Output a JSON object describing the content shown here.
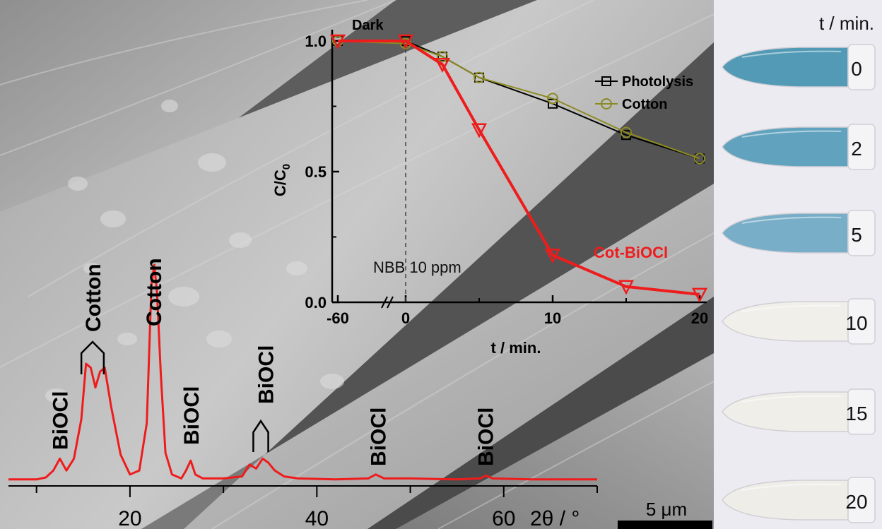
{
  "sem": {
    "scale_bar_label": "5 μm",
    "xrd": {
      "x_tick_labels": [
        {
          "value": 20,
          "label": "20"
        },
        {
          "value": 40,
          "label": "40"
        },
        {
          "value": 60,
          "label": "60"
        }
      ],
      "x_axis_label": "2θ / °",
      "peak_labels": [
        {
          "text": "BiOCl",
          "x": 12.5
        },
        {
          "text": "Cotton",
          "x": 16.0
        },
        {
          "text": "Cotton",
          "x": 22.5
        },
        {
          "text": "BiOCl",
          "x": 26.5
        },
        {
          "text": "BiOCl",
          "x": 34.5
        },
        {
          "text": "BiOCl",
          "x": 46.5
        },
        {
          "text": "BiOCl",
          "x": 58.0
        }
      ],
      "line_color": "#ee1c1c"
    }
  },
  "inset": {
    "x_tick_labels": [
      {
        "value": -60,
        "label": "-60"
      },
      {
        "value": 0,
        "label": "0"
      },
      {
        "value": 10,
        "label": "10"
      },
      {
        "value": 20,
        "label": "20"
      }
    ],
    "y_tick_labels": [
      {
        "value": 0.0,
        "label": "0.0"
      },
      {
        "value": 0.5,
        "label": "0.5"
      },
      {
        "value": 1.0,
        "label": "1.0"
      }
    ],
    "x_axis_label": "t / min.",
    "y_axis_label": "C/C",
    "y_axis_label_sub": "0",
    "dark_label": "Dark",
    "annotation": "NBB 10 ppm",
    "cot_label": "Cot-BiOCl",
    "legend": [
      "Photolysis",
      "Cotton"
    ]
  },
  "vials": {
    "header": "t / min.",
    "rows": [
      {
        "label": "0",
        "color": "#4a96b2"
      },
      {
        "label": "2",
        "color": "#5aa0bd"
      },
      {
        "label": "5",
        "color": "#72abc6"
      },
      {
        "label": "10",
        "color": "#f2f0ea"
      },
      {
        "label": "15",
        "color": "#f0efe8"
      },
      {
        "label": "20",
        "color": "#efeee8"
      }
    ]
  },
  "chart_data": [
    {
      "type": "line",
      "xlabel": "2θ / °",
      "ylabel": "",
      "xlim": [
        7,
        70
      ],
      "x_ticks": [
        20,
        40,
        60
      ],
      "series": [
        {
          "x": [
            7,
            10,
            11,
            11.8,
            12.5,
            13.2,
            14,
            14.8,
            15.3,
            15.8,
            16.3,
            16.8,
            17.3,
            18,
            19,
            20,
            21,
            21.8,
            22.3,
            22.6,
            22.9,
            23.3,
            23.8,
            24.5,
            25.5,
            26.0,
            26.5,
            27.0,
            27.8,
            30,
            32,
            32.8,
            33.5,
            34.2,
            34.8,
            35.5,
            36.5,
            38,
            42,
            45.5,
            46.3,
            47.2,
            50,
            55,
            57.5,
            58.1,
            58.8,
            63,
            67,
            70
          ],
          "y": [
            1.5,
            1.5,
            2.5,
            6,
            12,
            6,
            12,
            32,
            60,
            58,
            48,
            56,
            58,
            38,
            14,
            4,
            6,
            30,
            100,
            110,
            96,
            55,
            15,
            4,
            2,
            6,
            11,
            4,
            2,
            2,
            3,
            9,
            7,
            12,
            10,
            6,
            3,
            2,
            1.5,
            2,
            4,
            2,
            2,
            1.5,
            2,
            3.5,
            2,
            1.5,
            1.5,
            1.5
          ]
        }
      ]
    },
    {
      "type": "line",
      "xlabel": "t / min.",
      "ylabel": "C/C0",
      "ylim": [
        0,
        1.05
      ],
      "x_ticks": [
        -60,
        0,
        10,
        20
      ],
      "series": [
        {
          "name": "Photolysis",
          "color": "#000000",
          "marker": "square",
          "x": [
            -60,
            0,
            2.5,
            5,
            10,
            15,
            20
          ],
          "y": [
            1.0,
            1.0,
            0.94,
            0.86,
            0.76,
            0.64,
            0.55
          ]
        },
        {
          "name": "Cotton",
          "color": "#8c8a22",
          "marker": "circle",
          "x": [
            -60,
            0,
            2.5,
            5,
            10,
            15,
            20
          ],
          "y": [
            1.0,
            0.99,
            0.94,
            0.86,
            0.78,
            0.65,
            0.55
          ]
        },
        {
          "name": "Cot-BiOCl",
          "color": "#ee1c1c",
          "marker": "triangle-down",
          "x": [
            -60,
            0,
            2.5,
            5,
            10,
            15,
            20
          ],
          "y": [
            1.0,
            1.0,
            0.91,
            0.66,
            0.18,
            0.06,
            0.03
          ]
        }
      ]
    }
  ]
}
